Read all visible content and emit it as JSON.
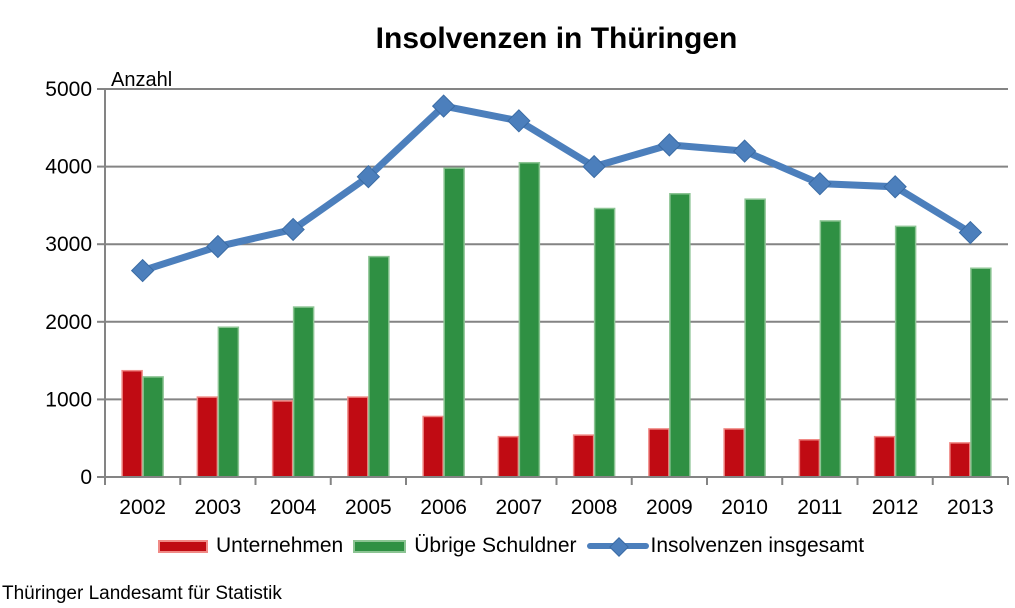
{
  "title": "Insolvenzen in Thüringen",
  "source": "Thüringer Landesamt für Statistik",
  "colors": {
    "bar_red": "#c00b13",
    "bar_red_border": "#f08a86",
    "bar_green": "#2f9043",
    "bar_green_border": "#8cc493",
    "line_blue": "#4c7fbc",
    "line_blue_border": "#3a6ba4",
    "axis_gray": "#848484"
  },
  "legend": [
    {
      "label": "Unternehmen"
    },
    {
      "label": "Übrige Schuldner"
    },
    {
      "label": "Insolvenzen insgesamt"
    }
  ],
  "chart_data": {
    "type": "bar+line",
    "title": "Insolvenzen in Thüringen",
    "ylabel": "Anzahl",
    "xlabel": "",
    "ylim": [
      0,
      5000
    ],
    "y_ticks": [
      0,
      1000,
      2000,
      3000,
      4000,
      5000
    ],
    "grid": "horizontal",
    "legend_position": "bottom",
    "categories": [
      "2002",
      "2003",
      "2004",
      "2005",
      "2006",
      "2007",
      "2008",
      "2009",
      "2010",
      "2011",
      "2012",
      "2013"
    ],
    "series": [
      {
        "name": "Unternehmen",
        "type": "bar",
        "color": "#c00b13",
        "border_color": "#f08a86",
        "values": [
          1370,
          1030,
          980,
          1030,
          780,
          520,
          540,
          620,
          620,
          480,
          520,
          440
        ]
      },
      {
        "name": "Übrige Schuldner",
        "type": "bar",
        "color": "#2f9043",
        "border_color": "#8cc493",
        "values": [
          1290,
          1930,
          2190,
          2840,
          3980,
          4050,
          3460,
          3650,
          3580,
          3300,
          3230,
          2690
        ]
      },
      {
        "name": "Insolvenzen insgesamt",
        "type": "line",
        "color": "#4c7fbc",
        "border_color": "#3a6ba4",
        "values": [
          2660,
          2970,
          3190,
          3870,
          4780,
          4590,
          4000,
          4280,
          4200,
          3780,
          3740,
          3150
        ]
      }
    ]
  }
}
